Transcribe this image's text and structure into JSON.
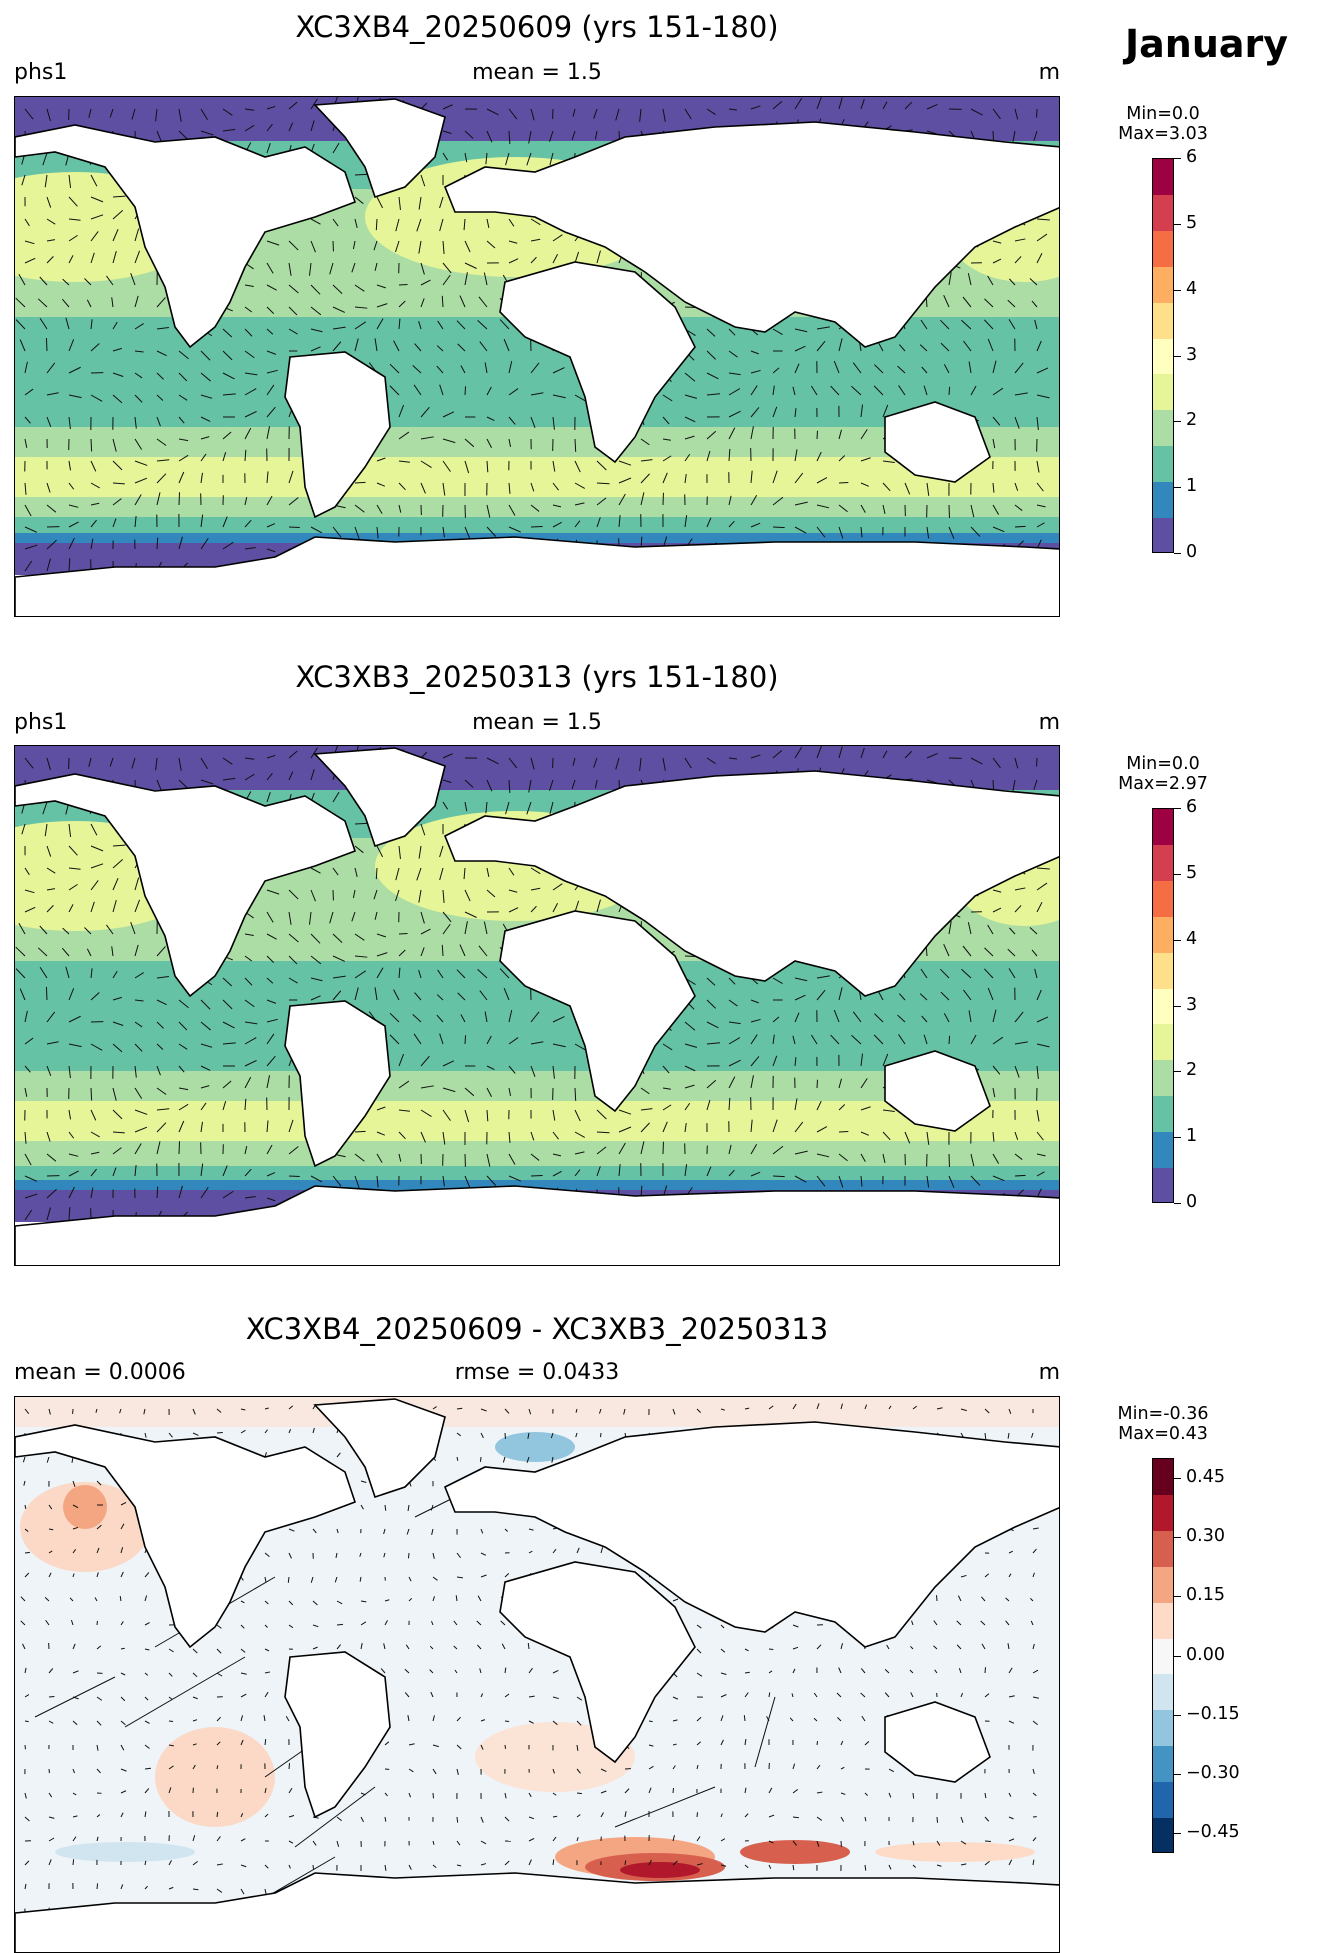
{
  "month": "January",
  "panels": [
    {
      "title": "XC3XB4_20250609 (yrs 151-180)",
      "left_label": "phs1",
      "center_label": "mean = 1.5",
      "right_label": "m",
      "colorbar": {
        "min_label": "Min=0.0",
        "max_label": "Max=3.03",
        "range": [
          0,
          6
        ],
        "ticks": [
          "0",
          "1",
          "2",
          "3",
          "4",
          "5",
          "6"
        ],
        "colors": [
          "#5e4fa2",
          "#3288bd",
          "#66c2a5",
          "#abdda4",
          "#e6f598",
          "#ffffbf",
          "#fee08b",
          "#fdae61",
          "#f46d43",
          "#d53e4f",
          "#9e0142"
        ]
      }
    },
    {
      "title": "XC3XB3_20250313 (yrs 151-180)",
      "left_label": "phs1",
      "center_label": "mean = 1.5",
      "right_label": "m",
      "colorbar": {
        "min_label": "Min=0.0",
        "max_label": "Max=2.97",
        "range": [
          0,
          6
        ],
        "ticks": [
          "0",
          "1",
          "2",
          "3",
          "4",
          "5",
          "6"
        ],
        "colors": [
          "#5e4fa2",
          "#3288bd",
          "#66c2a5",
          "#abdda4",
          "#e6f598",
          "#ffffbf",
          "#fee08b",
          "#fdae61",
          "#f46d43",
          "#d53e4f",
          "#9e0142"
        ]
      }
    },
    {
      "title": "XC3XB4_20250609 - XC3XB3_20250313",
      "left_label": "mean = 0.0006",
      "center_label": "rmse = 0.0433",
      "right_label": "m",
      "colorbar": {
        "min_label": "Min=-0.36",
        "max_label": "Max=0.43",
        "range": [
          -0.5,
          0.5
        ],
        "ticks": [
          "0.45",
          "0.30",
          "0.15",
          "0.00",
          "−0.15",
          "−0.30",
          "−0.45"
        ],
        "colors": [
          "#053061",
          "#2166ac",
          "#4393c3",
          "#92c5de",
          "#d1e5f0",
          "#f7f7f7",
          "#fddbc7",
          "#f4a582",
          "#d6604d",
          "#b2182b",
          "#67001f"
        ]
      }
    }
  ]
}
